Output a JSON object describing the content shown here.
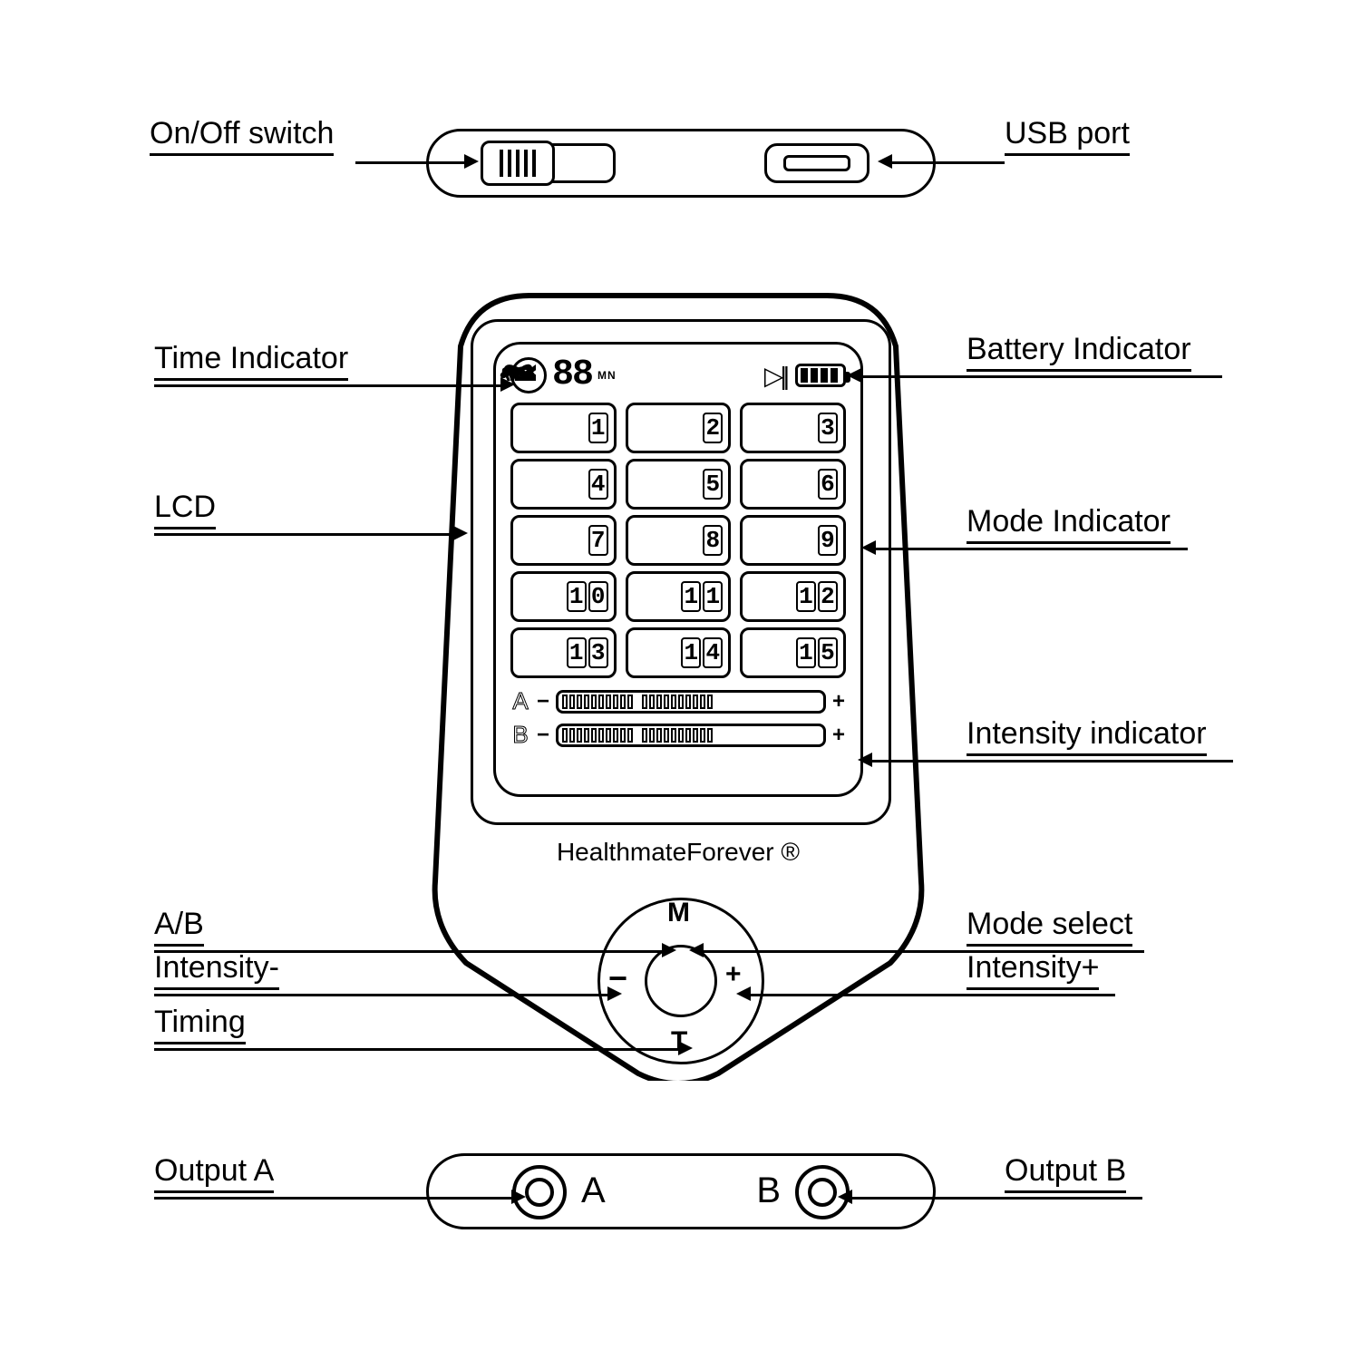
{
  "diagram_type": "technical line-art product diagram with callout labels",
  "stroke_color": "#000000",
  "background_color": "#ffffff",
  "label_fontsize_pt": 26,
  "brand_text": "HealthmateForever ®",
  "labels": {
    "on_off": "On/Off  switch",
    "usb": "USB  port",
    "time_indicator": "Time Indicator",
    "battery_indicator": "Battery Indicator",
    "lcd": "LCD",
    "mode_indicator": "Mode Indicator",
    "intensity_indicator": "Intensity indicator",
    "ab": "A/B",
    "intensity_minus": "Intensity-",
    "mode_select": "Mode select",
    "intensity_plus": "Intensity+",
    "timing": "Timing",
    "output_a": "Output  A",
    "output_b": "Output  B"
  },
  "lcd": {
    "time_value": "88",
    "time_unit": "MN",
    "battery_bars": 4,
    "play_pause_glyph": "▷||",
    "mode_count": 15,
    "mode_grid_cols": 3,
    "mode_grid_rows": 5,
    "channel_a_label": "A",
    "channel_b_label": "B",
    "intensity_segments_per_half": 10
  },
  "dpad": {
    "top": "M",
    "bottom": "T",
    "left": "−",
    "right": "+"
  },
  "outputs": {
    "a": "A",
    "b": "B"
  }
}
